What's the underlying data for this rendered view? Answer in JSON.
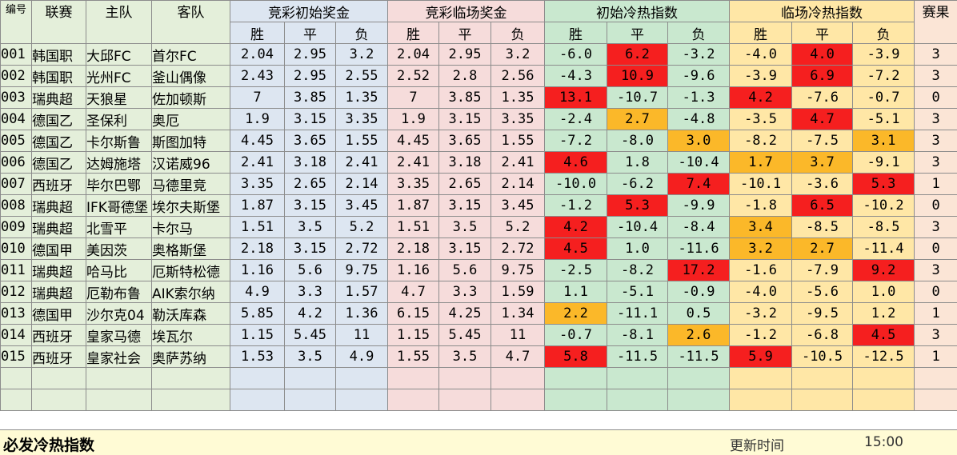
{
  "headers": {
    "no": "编号",
    "league": "联赛",
    "home": "主队",
    "away": "客队",
    "groups": [
      "竞彩初始奖金",
      "竞彩临场奖金",
      "初始冷热指数",
      "临场冷热指数"
    ],
    "sub": [
      "胜",
      "平",
      "负"
    ],
    "result": "赛果"
  },
  "rows": [
    {
      "no": "001",
      "league": "韩国职",
      "home": "大邱FC",
      "away": "首尔FC",
      "k": [
        "2.04",
        "2.95",
        "3.2"
      ],
      "l": [
        "2.04",
        "2.95",
        "3.2"
      ],
      "i": [
        "-6.0",
        "6.2",
        "-3.2"
      ],
      "z": [
        "-4.0",
        "4.0",
        "-3.9"
      ],
      "res": "3"
    },
    {
      "no": "002",
      "league": "韩国职",
      "home": "光州FC",
      "away": "釜山偶像",
      "k": [
        "2.43",
        "2.95",
        "2.55"
      ],
      "l": [
        "2.52",
        "2.8",
        "2.56"
      ],
      "i": [
        "-4.3",
        "10.9",
        "-9.6"
      ],
      "z": [
        "-3.9",
        "6.9",
        "-7.2"
      ],
      "res": "3"
    },
    {
      "no": "003",
      "league": "瑞典超",
      "home": "天狼星",
      "away": "佐加顿斯",
      "k": [
        "7",
        "3.85",
        "1.35"
      ],
      "l": [
        "7",
        "3.85",
        "1.35"
      ],
      "i": [
        "13.1",
        "-10.7",
        "-1.3"
      ],
      "z": [
        "4.2",
        "-7.6",
        "-0.7"
      ],
      "res": "0"
    },
    {
      "no": "004",
      "league": "德国乙",
      "home": "圣保利",
      "away": "奥厄",
      "k": [
        "1.9",
        "3.15",
        "3.35"
      ],
      "l": [
        "1.9",
        "3.15",
        "3.35"
      ],
      "i": [
        "-2.4",
        "2.7",
        "-4.8"
      ],
      "z": [
        "-3.5",
        "4.7",
        "-5.1"
      ],
      "res": "3"
    },
    {
      "no": "005",
      "league": "德国乙",
      "home": "卡尔斯鲁",
      "away": "斯图加特",
      "k": [
        "4.45",
        "3.65",
        "1.55"
      ],
      "l": [
        "4.45",
        "3.65",
        "1.55"
      ],
      "i": [
        "-7.2",
        "-8.0",
        "3.0"
      ],
      "z": [
        "-8.2",
        "-7.5",
        "3.1"
      ],
      "res": "3"
    },
    {
      "no": "006",
      "league": "德国乙",
      "home": "达姆施塔",
      "away": "汉诺威96",
      "k": [
        "2.41",
        "3.18",
        "2.41"
      ],
      "l": [
        "2.41",
        "3.18",
        "2.41"
      ],
      "i": [
        "4.6",
        "1.8",
        "-10.4"
      ],
      "z": [
        "1.7",
        "3.7",
        "-9.1"
      ],
      "res": "3"
    },
    {
      "no": "007",
      "league": "西班牙",
      "home": "毕尔巴鄂",
      "away": "马德里竞",
      "k": [
        "3.35",
        "2.65",
        "2.14"
      ],
      "l": [
        "3.35",
        "2.65",
        "2.14"
      ],
      "i": [
        "-10.0",
        "-6.2",
        "7.4"
      ],
      "z": [
        "-10.1",
        "-3.6",
        "5.3"
      ],
      "res": "1"
    },
    {
      "no": "008",
      "league": "瑞典超",
      "home": "IFK哥德堡",
      "away": "埃尔夫斯堡",
      "k": [
        "1.87",
        "3.15",
        "3.45"
      ],
      "l": [
        "1.87",
        "3.15",
        "3.45"
      ],
      "i": [
        "-1.2",
        "5.3",
        "-9.9"
      ],
      "z": [
        "-1.8",
        "6.5",
        "-10.2"
      ],
      "res": "0"
    },
    {
      "no": "009",
      "league": "瑞典超",
      "home": "北雪平",
      "away": "卡尔马",
      "k": [
        "1.51",
        "3.5",
        "5.2"
      ],
      "l": [
        "1.51",
        "3.5",
        "5.2"
      ],
      "i": [
        "4.2",
        "-10.4",
        "-8.4"
      ],
      "z": [
        "3.4",
        "-8.5",
        "-8.5"
      ],
      "res": "3"
    },
    {
      "no": "010",
      "league": "德国甲",
      "home": "美因茨",
      "away": "奥格斯堡",
      "k": [
        "2.18",
        "3.15",
        "2.72"
      ],
      "l": [
        "2.18",
        "3.15",
        "2.72"
      ],
      "i": [
        "4.5",
        "1.0",
        "-11.6"
      ],
      "z": [
        "3.2",
        "2.7",
        "-11.4"
      ],
      "res": "0"
    },
    {
      "no": "011",
      "league": "瑞典超",
      "home": "哈马比",
      "away": "厄斯特松德",
      "k": [
        "1.16",
        "5.6",
        "9.75"
      ],
      "l": [
        "1.16",
        "5.6",
        "9.75"
      ],
      "i": [
        "-2.5",
        "-8.2",
        "17.2"
      ],
      "z": [
        "-1.6",
        "-7.9",
        "9.2"
      ],
      "res": "3"
    },
    {
      "no": "012",
      "league": "瑞典超",
      "home": "厄勒布鲁",
      "away": "AIK索尔纳",
      "k": [
        "4.9",
        "3.3",
        "1.57"
      ],
      "l": [
        "4.7",
        "3.3",
        "1.59"
      ],
      "i": [
        "1.1",
        "-5.1",
        "-0.9"
      ],
      "z": [
        "-4.0",
        "-5.6",
        "1.0"
      ],
      "res": "0"
    },
    {
      "no": "013",
      "league": "德国甲",
      "home": "沙尔克04",
      "away": "勒沃库森",
      "k": [
        "5.85",
        "4.2",
        "1.36"
      ],
      "l": [
        "6.15",
        "4.25",
        "1.34"
      ],
      "i": [
        "2.2",
        "-11.1",
        "0.5"
      ],
      "z": [
        "-3.2",
        "-9.5",
        "1.2"
      ],
      "res": "1"
    },
    {
      "no": "014",
      "league": "西班牙",
      "home": "皇家马德",
      "away": "埃瓦尔",
      "k": [
        "1.15",
        "5.45",
        "11"
      ],
      "l": [
        "1.15",
        "5.45",
        "11"
      ],
      "i": [
        "-0.7",
        "-8.1",
        "2.6"
      ],
      "z": [
        "-1.2",
        "-6.8",
        "4.5"
      ],
      "res": "3"
    },
    {
      "no": "015",
      "league": "西班牙",
      "home": "皇家社会",
      "away": "奥萨苏纳",
      "k": [
        "1.53",
        "3.5",
        "4.9"
      ],
      "l": [
        "1.55",
        "3.5",
        "4.7"
      ],
      "i": [
        "5.8",
        "-11.5",
        "-11.5"
      ],
      "z": [
        "5.9",
        "-10.5",
        "-12.5"
      ],
      "res": "1"
    }
  ],
  "highlights": {
    "i": [
      [
        null,
        "hot",
        null
      ],
      [
        null,
        "hot",
        null
      ],
      [
        "hot",
        null,
        null
      ],
      [
        null,
        "warm",
        null
      ],
      [
        null,
        null,
        "warm"
      ],
      [
        "hot",
        null,
        null
      ],
      [
        null,
        null,
        "hot"
      ],
      [
        null,
        "hot",
        null
      ],
      [
        "hot",
        null,
        null
      ],
      [
        "hot",
        null,
        null
      ],
      [
        null,
        null,
        "hot"
      ],
      [
        null,
        null,
        null
      ],
      [
        "warm",
        null,
        null
      ],
      [
        null,
        null,
        "warm"
      ],
      [
        "hot",
        null,
        null
      ]
    ],
    "z": [
      [
        null,
        "hot",
        null
      ],
      [
        null,
        "hot",
        null
      ],
      [
        "hot",
        null,
        null
      ],
      [
        null,
        "hot",
        null
      ],
      [
        null,
        null,
        "warm"
      ],
      [
        "warm",
        "warm",
        null
      ],
      [
        null,
        null,
        "hot"
      ],
      [
        null,
        "hot",
        null
      ],
      [
        "warm",
        null,
        null
      ],
      [
        "warm",
        "warm",
        null
      ],
      [
        null,
        null,
        "hot"
      ],
      [
        null,
        null,
        null
      ],
      [
        null,
        null,
        null
      ],
      [
        null,
        null,
        "hot"
      ],
      [
        "hot",
        null,
        null
      ]
    ]
  },
  "colors": {
    "hot": "#f51f1f",
    "warm": "#fbb829"
  },
  "footer": {
    "title": "必发冷热指数",
    "update_label": "更新时间",
    "update_time": "15:00"
  }
}
